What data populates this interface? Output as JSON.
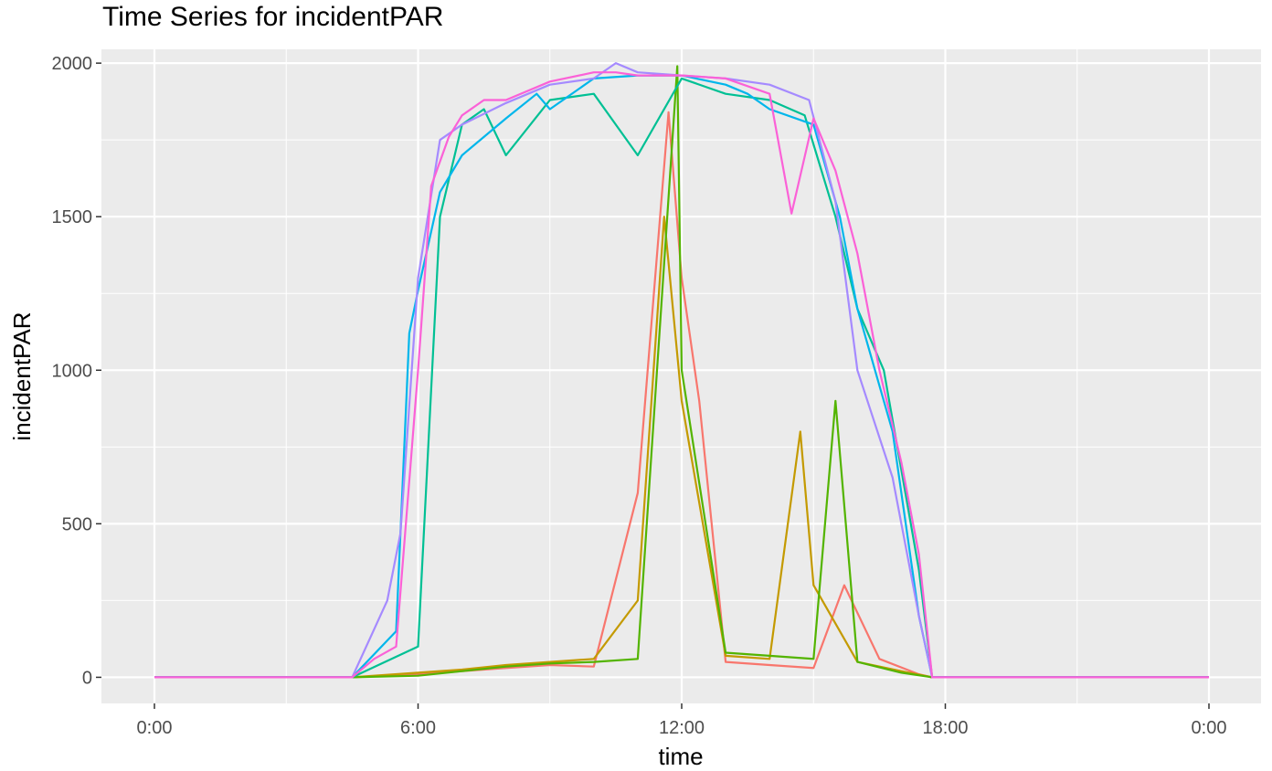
{
  "chart_data": {
    "type": "line",
    "title": "Time Series for incidentPAR",
    "xlabel": "time",
    "ylabel": "incidentPAR",
    "x_unit": "hours of day",
    "xlim": [
      0,
      24
    ],
    "ylim": [
      -85,
      2045
    ],
    "x_ticks": [
      {
        "value": 0,
        "label": "0:00"
      },
      {
        "value": 6,
        "label": "6:00"
      },
      {
        "value": 12,
        "label": "12:00"
      },
      {
        "value": 18,
        "label": "18:00"
      },
      {
        "value": 24,
        "label": "0:00"
      }
    ],
    "y_ticks": [
      {
        "value": 0,
        "label": "0"
      },
      {
        "value": 500,
        "label": "500"
      },
      {
        "value": 1000,
        "label": "1000"
      },
      {
        "value": 1500,
        "label": "1500"
      },
      {
        "value": 2000,
        "label": "2000"
      }
    ],
    "grid": true,
    "legend": "none",
    "background": "#ebebeb",
    "series": [
      {
        "color": "#f8766d",
        "x": [
          0,
          4.5,
          6,
          7,
          8,
          9,
          10,
          11,
          11.7,
          12,
          12.4,
          13,
          14,
          15,
          15.7,
          16.5,
          17.4,
          17.7,
          18,
          24
        ],
        "y": [
          0,
          0,
          10,
          20,
          30,
          40,
          35,
          600,
          1840,
          1300,
          900,
          50,
          40,
          30,
          300,
          60,
          10,
          0,
          0,
          0
        ]
      },
      {
        "color": "#c49a00",
        "x": [
          0,
          4.5,
          6,
          7,
          8,
          9,
          10,
          11,
          11.6,
          12,
          13,
          14,
          14.7,
          15,
          16,
          17,
          17.7,
          18,
          24
        ],
        "y": [
          0,
          0,
          15,
          25,
          40,
          50,
          60,
          250,
          1500,
          900,
          70,
          60,
          800,
          300,
          50,
          20,
          0,
          0,
          0
        ]
      },
      {
        "color": "#53b400",
        "x": [
          0,
          4.5,
          6,
          7,
          8,
          9,
          10,
          11,
          11.9,
          12,
          13,
          14,
          15,
          15.5,
          16,
          17,
          17.7,
          18,
          24
        ],
        "y": [
          0,
          0,
          5,
          20,
          35,
          45,
          50,
          60,
          1990,
          1000,
          80,
          70,
          60,
          900,
          50,
          15,
          0,
          0,
          0
        ]
      },
      {
        "color": "#00c094",
        "x": [
          0,
          4.5,
          6,
          6.5,
          7,
          7.5,
          8,
          9,
          10,
          11,
          12,
          13,
          14,
          14.8,
          15.5,
          16,
          16.6,
          17.4,
          17.7,
          18,
          24
        ],
        "y": [
          0,
          0,
          100,
          1500,
          1800,
          1850,
          1700,
          1880,
          1900,
          1700,
          1950,
          1900,
          1880,
          1830,
          1500,
          1200,
          1000,
          350,
          0,
          0,
          0
        ]
      },
      {
        "color": "#00b6eb",
        "x": [
          0,
          4.5,
          5.5,
          5.8,
          6,
          6.5,
          7,
          8,
          8.7,
          9,
          10,
          11,
          12,
          13,
          13.5,
          14,
          15,
          15.6,
          16,
          16.8,
          17.4,
          17.7,
          18,
          24
        ],
        "y": [
          0,
          0,
          150,
          1120,
          1260,
          1580,
          1700,
          1820,
          1900,
          1850,
          1950,
          1960,
          1960,
          1930,
          1900,
          1850,
          1800,
          1500,
          1200,
          800,
          200,
          0,
          0,
          0
        ]
      },
      {
        "color": "#a58aff",
        "x": [
          0,
          4.5,
          5.3,
          5.6,
          6,
          6.5,
          7,
          8,
          9,
          10,
          10.5,
          11,
          12,
          13,
          14,
          14.9,
          15.5,
          16,
          16.8,
          17.4,
          17.7,
          18,
          24
        ],
        "y": [
          0,
          0,
          250,
          470,
          1300,
          1750,
          1800,
          1870,
          1930,
          1950,
          2000,
          1970,
          1960,
          1950,
          1930,
          1880,
          1550,
          1000,
          650,
          200,
          0,
          0,
          0
        ]
      },
      {
        "color": "#fb61d7",
        "x": [
          0,
          4.5,
          5,
          5.5,
          6,
          6.3,
          6.7,
          7,
          7.5,
          8,
          9,
          10,
          10.5,
          11,
          12,
          13,
          14,
          14.5,
          15,
          15.5,
          16,
          16.5,
          17,
          17.4,
          17.7,
          18,
          24
        ],
        "y": [
          0,
          0,
          60,
          100,
          1000,
          1600,
          1760,
          1830,
          1880,
          1880,
          1940,
          1970,
          1970,
          1960,
          1960,
          1950,
          1900,
          1510,
          1820,
          1650,
          1380,
          1000,
          700,
          400,
          0,
          0,
          0
        ]
      }
    ]
  }
}
